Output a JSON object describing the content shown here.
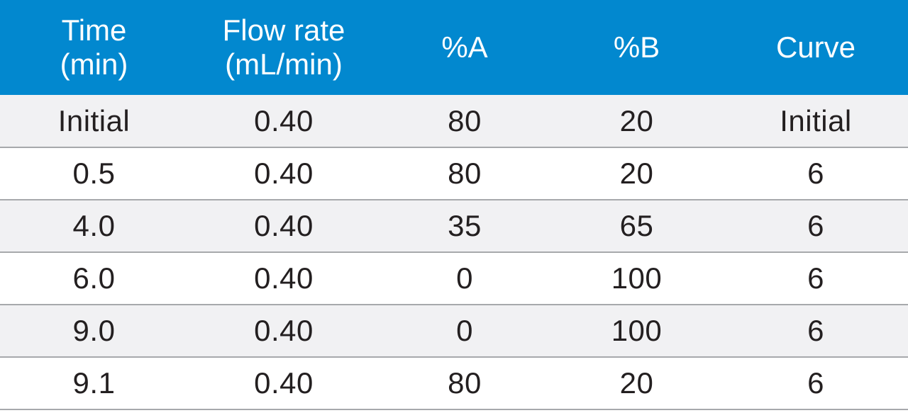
{
  "table": {
    "headers": [
      {
        "line1": "Time",
        "line2": "(min)"
      },
      {
        "line1": "Flow rate",
        "line2": "(mL/min)"
      },
      {
        "line1": "%A",
        "line2": ""
      },
      {
        "line1": "%B",
        "line2": ""
      },
      {
        "line1": "Curve",
        "line2": ""
      }
    ],
    "rows": [
      [
        "Initial",
        "0.40",
        "80",
        "20",
        "Initial"
      ],
      [
        "0.5",
        "0.40",
        "80",
        "20",
        "6"
      ],
      [
        "4.0",
        "0.40",
        "35",
        "65",
        "6"
      ],
      [
        "6.0",
        "0.40",
        "0",
        "100",
        "6"
      ],
      [
        "9.0",
        "0.40",
        "0",
        "100",
        "6"
      ],
      [
        "9.1",
        "0.40",
        "80",
        "20",
        "6"
      ]
    ]
  },
  "colors": {
    "header_bg": "#0288cf",
    "header_text": "#ffffff",
    "row_shaded": "#f1f1f3",
    "row_plain": "#ffffff",
    "divider": "#a7a9ac",
    "body_text": "#231f20"
  }
}
